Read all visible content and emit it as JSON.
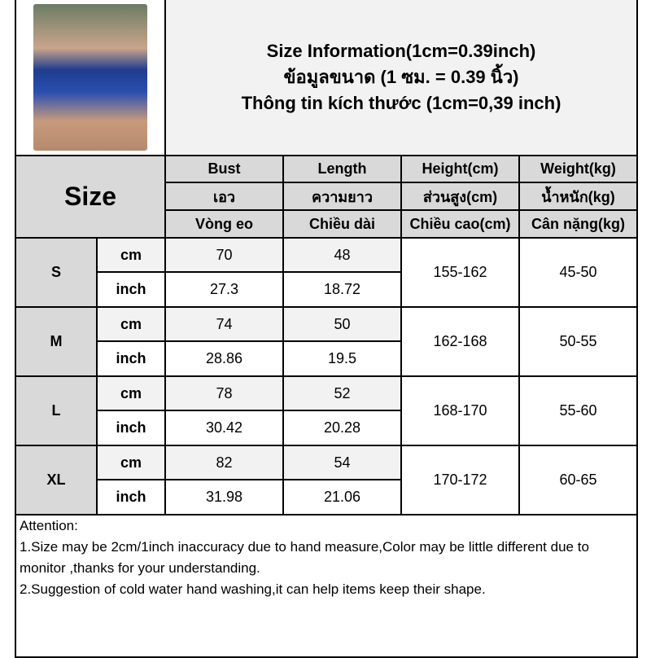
{
  "title": {
    "line1": "Size Information(1cm=0.39inch)",
    "line2": "ข้อมูลขนาด (1 ซม. = 0.39 นิ้ว)",
    "line3": "Thông tin kích thước (1cm=0,39 inch)"
  },
  "size_label": "Size",
  "headers": [
    [
      "Bust",
      "เอว",
      "Vòng eo"
    ],
    [
      "Length",
      "ความยาว",
      "Chiều dài"
    ],
    [
      "Height(cm)",
      "ส่วนสูง(cm)",
      "Chiều cao(cm)"
    ],
    [
      "Weight(kg)",
      "น้ำหนัก(kg)",
      "Cân nặng(kg)"
    ]
  ],
  "units": {
    "cm": "cm",
    "inch": "inch"
  },
  "rows": [
    {
      "size": "S",
      "cm": [
        "70",
        "48"
      ],
      "inch": [
        "27.3",
        "18.72"
      ],
      "height": "155-162",
      "weight": "45-50"
    },
    {
      "size": "M",
      "cm": [
        "74",
        "50"
      ],
      "inch": [
        "28.86",
        "19.5"
      ],
      "height": "162-168",
      "weight": "50-55"
    },
    {
      "size": "L",
      "cm": [
        "78",
        "52"
      ],
      "inch": [
        "30.42",
        "20.28"
      ],
      "height": "168-170",
      "weight": "55-60"
    },
    {
      "size": "XL",
      "cm": [
        "82",
        "54"
      ],
      "inch": [
        "31.98",
        "21.06"
      ],
      "height": "170-172",
      "weight": "60-65"
    }
  ],
  "attention": {
    "heading": "Attention:",
    "note1": "1.Size may be 2cm/1inch inaccuracy due to hand measure,Color may be little different due to monitor ,thanks for your understanding.",
    "note2": "2.Suggestion of cold water hand washing,it can help items keep their shape."
  }
}
